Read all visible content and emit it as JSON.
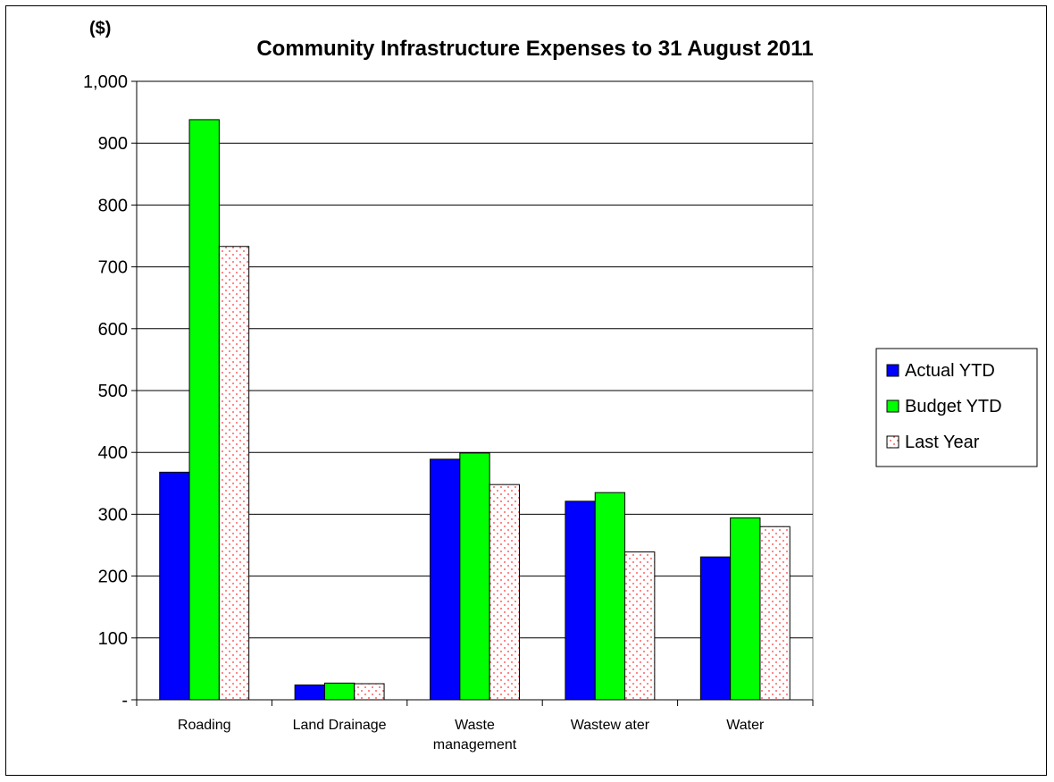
{
  "chart_data": {
    "type": "bar",
    "title": "Community Infrastructure Expenses to 31 August 2011",
    "unit_label": "($)",
    "xlabel": "",
    "ylabel": "",
    "ylim": [
      0,
      1000
    ],
    "y_ticks": [
      {
        "value": 0,
        "label": "-"
      },
      {
        "value": 100,
        "label": "100"
      },
      {
        "value": 200,
        "label": "200"
      },
      {
        "value": 300,
        "label": "300"
      },
      {
        "value": 400,
        "label": "400"
      },
      {
        "value": 500,
        "label": "500"
      },
      {
        "value": 600,
        "label": "600"
      },
      {
        "value": 700,
        "label": "700"
      },
      {
        "value": 800,
        "label": "800"
      },
      {
        "value": 900,
        "label": "900"
      },
      {
        "value": 1000,
        "label": "1,000"
      }
    ],
    "categories": [
      [
        "Roading"
      ],
      [
        "Land Drainage"
      ],
      [
        "Waste",
        "management"
      ],
      [
        "Wastew ater"
      ],
      [
        "Water"
      ]
    ],
    "series": [
      {
        "name": "Actual YTD",
        "color": "#0000ff",
        "pattern": "solid",
        "values": [
          368,
          24,
          389,
          321,
          231
        ]
      },
      {
        "name": "Budget YTD",
        "color": "#00ff00",
        "pattern": "solid",
        "values": [
          938,
          27,
          399,
          335,
          294
        ]
      },
      {
        "name": "Last Year",
        "color": "#ff0000",
        "pattern": "dotted",
        "values": [
          733,
          26,
          348,
          239,
          280
        ]
      }
    ],
    "grid": true,
    "legend_position": "right"
  }
}
